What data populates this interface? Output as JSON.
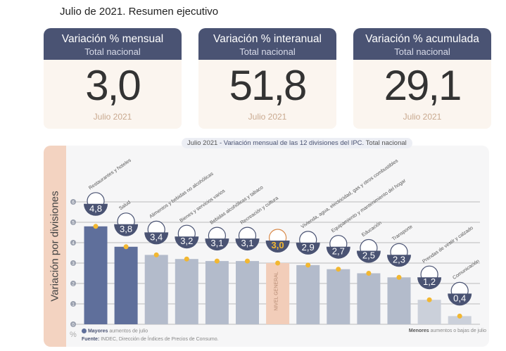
{
  "header": {
    "title": "Julio de 2021. Resumen ejecutivo"
  },
  "cards": [
    {
      "title": "Variación % mensual",
      "subtitle": "Total nacional",
      "value": "3,0",
      "period": "Julio 2021"
    },
    {
      "title": "Variación % interanual",
      "subtitle": "Total nacional",
      "value": "51,8",
      "period": "Julio 2021"
    },
    {
      "title": "Variación % acumulada",
      "subtitle": "Total nacional",
      "value": "29,1",
      "period": "Julio 2021"
    }
  ],
  "chart_data": {
    "type": "bar",
    "title": "Julio 2021 - Variación mensual de las 12 divisiones del IPC. Total nacional",
    "title_period": "Julio 2021",
    "title_main": "- Variación mensual de las 12 divisiones del IPC.",
    "title_scope": "Total nacional",
    "ylabel": "Variación por divisiones",
    "yunit": "%",
    "ylim": [
      0,
      6
    ],
    "yticks": [
      "0",
      "1",
      "2",
      "3",
      "4",
      "5",
      "6"
    ],
    "categories": [
      "Restaurantes y hoteles",
      "Salud",
      "Alimentos y bebidas no alcohólicas",
      "Bienes y servicios varios",
      "Bebidas alcohólicas y tabaco",
      "Recreación y cultura",
      "Nivel general",
      "Vivienda, agua, electricidad, gas y otros combustibles",
      "Equipamiento y mantenimiento del hogar",
      "Educación",
      "Transporte",
      "Prendas de vestir y calzado",
      "Comunicación"
    ],
    "values": [
      4.8,
      3.8,
      3.4,
      3.2,
      3.1,
      3.1,
      3.0,
      2.9,
      2.7,
      2.5,
      2.3,
      1.2,
      0.4
    ],
    "value_labels": [
      "4,8",
      "3,8",
      "3,4",
      "3,2",
      "3,1",
      "3,1",
      "3,0",
      "2,9",
      "2,7",
      "2,5",
      "2,3",
      "1,2",
      "0,4"
    ],
    "bar_label_general": "NIVEL GENERAL",
    "legend_high_bold": "Mayores",
    "legend_high": "aumentos de julio",
    "legend_low_bold": "Menores",
    "legend_low": "aumentos o bajas de julio",
    "source_bold": "Fuente:",
    "source": "INDEC, Dirección de Índices de Precios de Consumo.",
    "colors": {
      "high": "#5f6f9b",
      "mid": "#b3bbcb",
      "low": "#cbd0da",
      "general": "#f2cdb9",
      "bubble": "#4a5373",
      "dot": "#f2b731"
    }
  }
}
